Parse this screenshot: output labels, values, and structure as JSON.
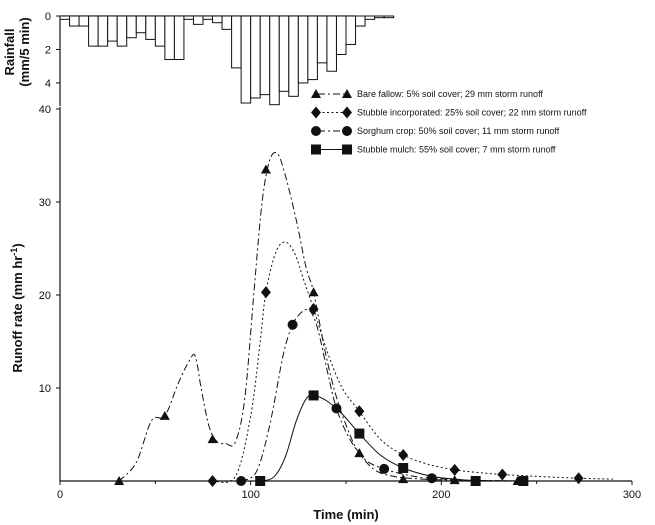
{
  "chart_data": [
    {
      "type": "bar",
      "ylabel": "Rainfall (mm/5 min)",
      "ylim": [
        0,
        4.9
      ],
      "inverted_y": true,
      "yticks": [
        "0",
        "2",
        "4"
      ],
      "bar_width_min": 5,
      "bars": [
        {
          "x": 0,
          "value": 0.2
        },
        {
          "x": 5,
          "value": 0.6
        },
        {
          "x": 10,
          "value": 0.6
        },
        {
          "x": 15,
          "value": 1.8
        },
        {
          "x": 20,
          "value": 1.8
        },
        {
          "x": 25,
          "value": 1.5
        },
        {
          "x": 30,
          "value": 1.8
        },
        {
          "x": 35,
          "value": 1.3
        },
        {
          "x": 40,
          "value": 1.0
        },
        {
          "x": 45,
          "value": 1.4
        },
        {
          "x": 50,
          "value": 1.8
        },
        {
          "x": 55,
          "value": 2.6
        },
        {
          "x": 60,
          "value": 2.6
        },
        {
          "x": 65,
          "value": 0.2
        },
        {
          "x": 70,
          "value": 0.5
        },
        {
          "x": 75,
          "value": 0.2
        },
        {
          "x": 80,
          "value": 0.4
        },
        {
          "x": 85,
          "value": 0.8
        },
        {
          "x": 90,
          "value": 3.1
        },
        {
          "x": 95,
          "value": 5.2
        },
        {
          "x": 100,
          "value": 4.9
        },
        {
          "x": 105,
          "value": 4.7
        },
        {
          "x": 110,
          "value": 5.3
        },
        {
          "x": 115,
          "value": 4.5
        },
        {
          "x": 120,
          "value": 4.8
        },
        {
          "x": 125,
          "value": 4.0
        },
        {
          "x": 130,
          "value": 3.8
        },
        {
          "x": 135,
          "value": 2.8
        },
        {
          "x": 140,
          "value": 3.3
        },
        {
          "x": 145,
          "value": 2.3
        },
        {
          "x": 150,
          "value": 1.7
        },
        {
          "x": 155,
          "value": 0.6
        },
        {
          "x": 160,
          "value": 0.2
        },
        {
          "x": 165,
          "value": 0.1
        },
        {
          "x": 170,
          "value": 0.1
        }
      ]
    },
    {
      "type": "line",
      "xlabel": "Time (min)",
      "ylabel": "Runoff rate (mm hr",
      "ylabel_superscript": "-1",
      "ylabel_close": ")",
      "xlim": [
        0,
        300
      ],
      "ylim": [
        0,
        40
      ],
      "xticks": [
        "0",
        "100",
        "200",
        "300"
      ],
      "yticks": [
        "10",
        "20",
        "30",
        "40"
      ],
      "legend_position": "upper-right",
      "series": [
        {
          "name": "Bare fallow: 5% soil cover; 29 mm storm runoff",
          "marker": "triangle",
          "dash": "dash-dot",
          "points": [
            [
              31,
              0
            ],
            [
              55,
              7
            ],
            [
              80,
              4.5
            ],
            [
              108,
              33.5
            ],
            [
              133,
              20.3
            ],
            [
              157,
              3
            ],
            [
              180,
              0.2
            ],
            [
              207,
              0.1
            ],
            [
              240,
              0
            ]
          ],
          "curve": [
            [
              31,
              0
            ],
            [
              40,
              2
            ],
            [
              48,
              6.5
            ],
            [
              55,
              7
            ],
            [
              62,
              10.5
            ],
            [
              68,
              13
            ],
            [
              71,
              13.4
            ],
            [
              74,
              10
            ],
            [
              78,
              6
            ],
            [
              82,
              4.3
            ],
            [
              87,
              4
            ],
            [
              92,
              4.2
            ],
            [
              97,
              9
            ],
            [
              102,
              21
            ],
            [
              106,
              30
            ],
            [
              110,
              34.5
            ],
            [
              114,
              35.2
            ],
            [
              118,
              33
            ],
            [
              124,
              28
            ],
            [
              129,
              23
            ],
            [
              133,
              20.3
            ],
            [
              139,
              14
            ],
            [
              145,
              9
            ],
            [
              152,
              5
            ],
            [
              157,
              3
            ],
            [
              165,
              1.2
            ],
            [
              175,
              0.5
            ],
            [
              190,
              0.2
            ],
            [
              207,
              0.1
            ],
            [
              240,
              0
            ]
          ]
        },
        {
          "name": "Stubble incorporated: 25% soil cover; 22 mm storm runoff",
          "marker": "diamond",
          "dash": "dotted",
          "points": [
            [
              80,
              0
            ],
            [
              108,
              20.3
            ],
            [
              133,
              18.5
            ],
            [
              157,
              7.5
            ],
            [
              180,
              2.8
            ],
            [
              207,
              1.2
            ],
            [
              232,
              0.7
            ],
            [
              272,
              0.3
            ]
          ],
          "curve": [
            [
              80,
              0
            ],
            [
              92,
              0.5
            ],
            [
              100,
              7
            ],
            [
              105,
              15
            ],
            [
              108,
              20.3
            ],
            [
              113,
              24.5
            ],
            [
              118,
              25.7
            ],
            [
              123,
              24.5
            ],
            [
              128,
              21.5
            ],
            [
              133,
              18.5
            ],
            [
              140,
              14
            ],
            [
              148,
              10
            ],
            [
              157,
              7.5
            ],
            [
              168,
              4.5
            ],
            [
              180,
              2.8
            ],
            [
              193,
              1.8
            ],
            [
              207,
              1.2
            ],
            [
              220,
              0.9
            ],
            [
              232,
              0.7
            ],
            [
              250,
              0.5
            ],
            [
              272,
              0.3
            ],
            [
              290,
              0.2
            ]
          ]
        },
        {
          "name": "Sorghum crop: 50% soil cover; 11 mm storm runoff",
          "marker": "circle",
          "dash": "dash-dot",
          "points": [
            [
              95,
              0
            ],
            [
              122,
              16.8
            ],
            [
              145,
              7.8
            ],
            [
              170,
              1.3
            ],
            [
              195,
              0.3
            ],
            [
              218,
              0
            ],
            [
              243,
              0
            ]
          ],
          "curve": [
            [
              95,
              0
            ],
            [
              103,
              1
            ],
            [
              110,
              6
            ],
            [
              117,
              13.5
            ],
            [
              122,
              16.8
            ],
            [
              127,
              18.2
            ],
            [
              131,
              18.3
            ],
            [
              135,
              16.5
            ],
            [
              140,
              12
            ],
            [
              145,
              7.8
            ],
            [
              152,
              4.5
            ],
            [
              160,
              2.3
            ],
            [
              170,
              1.3
            ],
            [
              183,
              0.6
            ],
            [
              195,
              0.3
            ],
            [
              218,
              0.05
            ],
            [
              243,
              0
            ]
          ]
        },
        {
          "name": "Stubble mulch: 55% soil cover; 7 mm storm runoff",
          "marker": "square",
          "dash": "solid",
          "points": [
            [
              105,
              0
            ],
            [
              133,
              9.2
            ],
            [
              157,
              5.1
            ],
            [
              180,
              1.4
            ],
            [
              218,
              0
            ],
            [
              243,
              0
            ]
          ],
          "curve": [
            [
              105,
              0
            ],
            [
              112,
              0.4
            ],
            [
              118,
              2.5
            ],
            [
              124,
              6.5
            ],
            [
              129,
              8.8
            ],
            [
              133,
              9.2
            ],
            [
              140,
              8.6
            ],
            [
              148,
              7.2
            ],
            [
              157,
              5.1
            ],
            [
              168,
              2.8
            ],
            [
              180,
              1.4
            ],
            [
              195,
              0.5
            ],
            [
              210,
              0.15
            ],
            [
              218,
              0.05
            ],
            [
              243,
              0
            ],
            [
              270,
              0
            ]
          ]
        }
      ]
    }
  ]
}
